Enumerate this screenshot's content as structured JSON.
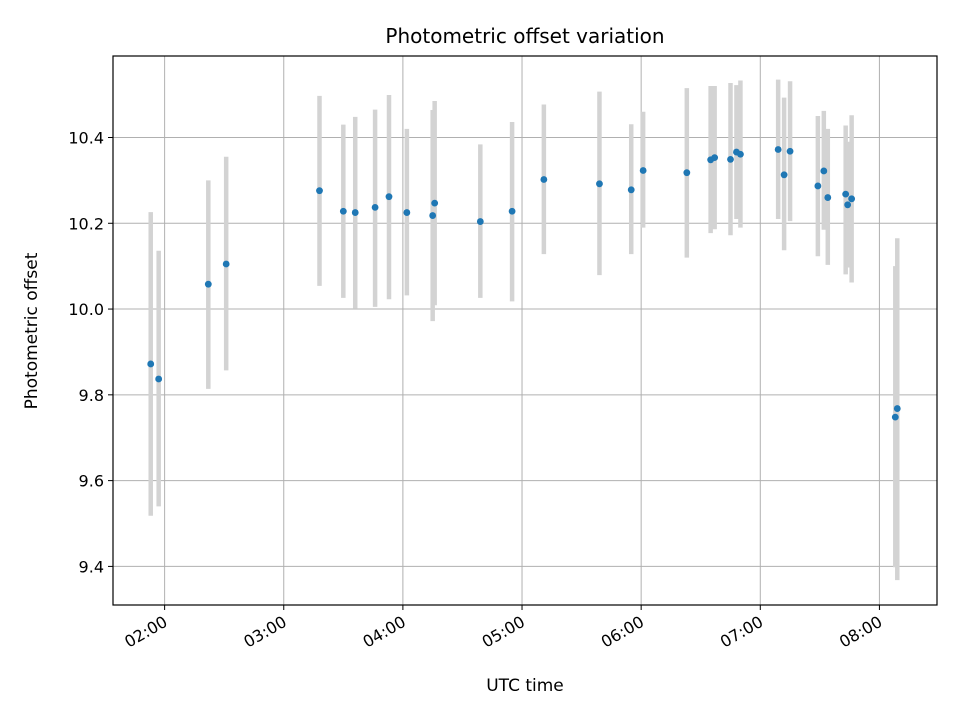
{
  "chart_data": {
    "type": "scatter",
    "title": "Photometric offset variation",
    "xlabel": "UTC time",
    "ylabel": "Photometric offset",
    "xlim": [
      "01:34",
      "08:29"
    ],
    "ylim": [
      9.31,
      10.59
    ],
    "grid": true,
    "x_ticks": [
      "02:00",
      "03:00",
      "04:00",
      "05:00",
      "06:00",
      "07:00",
      "08:00"
    ],
    "y_ticks": [
      "9.4",
      "9.6",
      "9.8",
      "10.0",
      "10.2",
      "10.4"
    ],
    "colors": {
      "points": "#1f77b4",
      "errorbars": "#d3d3d3",
      "grid": "#b0b0b0"
    },
    "points": [
      {
        "time": "01:53",
        "y": 9.872,
        "low": 9.518,
        "high": 10.226
      },
      {
        "time": "01:57",
        "y": 9.837,
        "low": 9.54,
        "high": 10.136
      },
      {
        "time": "02:22",
        "y": 10.058,
        "low": 9.814,
        "high": 10.3
      },
      {
        "time": "02:31",
        "y": 10.105,
        "low": 9.857,
        "high": 10.355
      },
      {
        "time": "03:18",
        "y": 10.276,
        "low": 10.054,
        "high": 10.497
      },
      {
        "time": "03:30",
        "y": 10.228,
        "low": 10.026,
        "high": 10.43
      },
      {
        "time": "03:36",
        "y": 10.225,
        "low": 10.002,
        "high": 10.448
      },
      {
        "time": "03:46",
        "y": 10.237,
        "low": 10.005,
        "high": 10.465
      },
      {
        "time": "03:53",
        "y": 10.262,
        "low": 10.023,
        "high": 10.499
      },
      {
        "time": "04:02",
        "y": 10.225,
        "low": 10.032,
        "high": 10.42
      },
      {
        "time": "04:15",
        "y": 10.218,
        "low": 9.972,
        "high": 10.464
      },
      {
        "time": "04:16",
        "y": 10.247,
        "low": 10.009,
        "high": 10.485
      },
      {
        "time": "04:39",
        "y": 10.204,
        "low": 10.026,
        "high": 10.384
      },
      {
        "time": "04:55",
        "y": 10.228,
        "low": 10.018,
        "high": 10.436
      },
      {
        "time": "05:11",
        "y": 10.302,
        "low": 10.128,
        "high": 10.477
      },
      {
        "time": "05:39",
        "y": 10.292,
        "low": 10.079,
        "high": 10.507
      },
      {
        "time": "05:55",
        "y": 10.278,
        "low": 10.128,
        "high": 10.431
      },
      {
        "time": "06:01",
        "y": 10.323,
        "low": 10.19,
        "high": 10.46
      },
      {
        "time": "06:23",
        "y": 10.318,
        "low": 10.12,
        "high": 10.515
      },
      {
        "time": "06:35",
        "y": 10.348,
        "low": 10.177,
        "high": 10.52
      },
      {
        "time": "06:37",
        "y": 10.353,
        "low": 10.186,
        "high": 10.52
      },
      {
        "time": "06:45",
        "y": 10.349,
        "low": 10.172,
        "high": 10.527
      },
      {
        "time": "06:48",
        "y": 10.366,
        "low": 10.21,
        "high": 10.522
      },
      {
        "time": "06:50",
        "y": 10.361,
        "low": 10.19,
        "high": 10.533
      },
      {
        "time": "07:09",
        "y": 10.372,
        "low": 10.21,
        "high": 10.535
      },
      {
        "time": "07:12",
        "y": 10.313,
        "low": 10.137,
        "high": 10.493
      },
      {
        "time": "07:15",
        "y": 10.368,
        "low": 10.205,
        "high": 10.531
      },
      {
        "time": "07:29",
        "y": 10.287,
        "low": 10.123,
        "high": 10.45
      },
      {
        "time": "07:32",
        "y": 10.322,
        "low": 10.185,
        "high": 10.462
      },
      {
        "time": "07:34",
        "y": 10.26,
        "low": 10.103,
        "high": 10.42
      },
      {
        "time": "07:43",
        "y": 10.268,
        "low": 10.081,
        "high": 10.428
      },
      {
        "time": "07:44",
        "y": 10.243,
        "low": 10.097,
        "high": 10.39
      },
      {
        "time": "07:46",
        "y": 10.257,
        "low": 10.062,
        "high": 10.452
      },
      {
        "time": "08:08",
        "y": 9.748,
        "low": 9.398,
        "high": 10.1
      },
      {
        "time": "08:09",
        "y": 9.768,
        "low": 9.368,
        "high": 10.165
      }
    ]
  }
}
